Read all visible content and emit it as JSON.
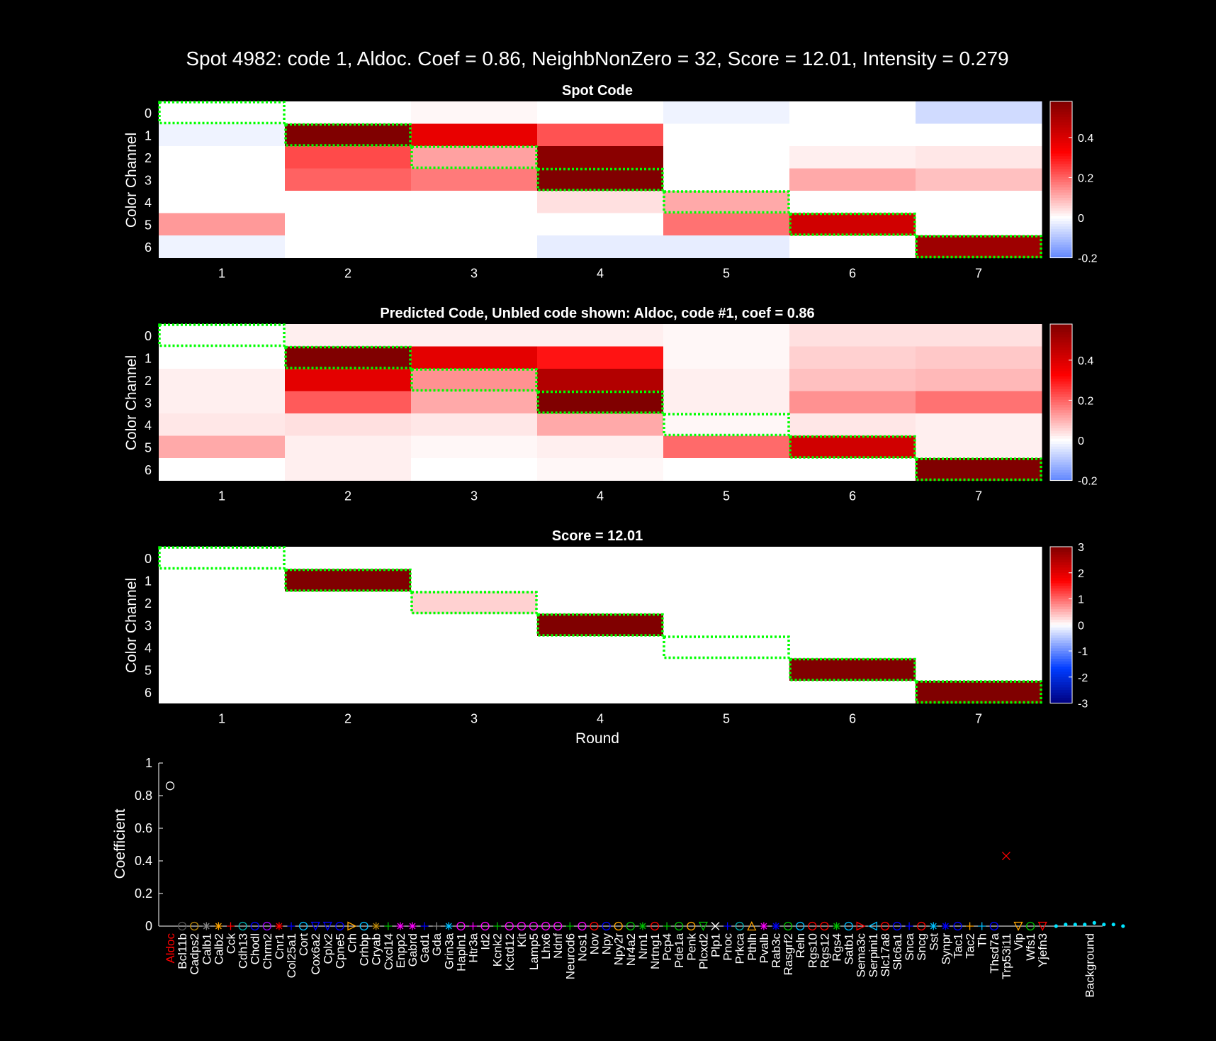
{
  "figure_title": "Spot 4982: code 1, Aldoc. Coef = 0.86, NeighbNonZero = 32, Score = 12.01, Intensity = 0.279",
  "colors": {
    "background": "#000000",
    "highlight": "#00ff00",
    "text": "#ffffff",
    "gene_highlight": "#ff0000",
    "background_marker": "#00e5ff"
  },
  "chart_data": [
    {
      "type": "heatmap",
      "title": "Spot Code",
      "xlabel": "",
      "ylabel": "Color Channel",
      "x": [
        1,
        2,
        3,
        4,
        5,
        6,
        7
      ],
      "y": [
        0,
        1,
        2,
        3,
        4,
        5,
        6
      ],
      "clim": [
        -0.2,
        0.58
      ],
      "colorbar_ticks": [
        "-0.2",
        "0",
        "0.2",
        "0.4"
      ],
      "colorbar_tick_values": [
        -0.2,
        0,
        0.2,
        0.4
      ],
      "highlight_channel_per_round": [
        0,
        1,
        2,
        3,
        4,
        5,
        6
      ],
      "values": [
        [
          0.0,
          0.0,
          0.01,
          0.0,
          -0.02,
          0.0,
          -0.06
        ],
        [
          -0.02,
          0.58,
          0.37,
          0.22,
          0.0,
          0.0,
          0.0
        ],
        [
          0.0,
          0.23,
          0.12,
          0.56,
          0.0,
          0.02,
          0.03
        ],
        [
          0.0,
          0.2,
          0.17,
          0.58,
          0.0,
          0.11,
          0.08
        ],
        [
          0.0,
          0.0,
          0.0,
          0.04,
          0.11,
          0.0,
          0.0
        ],
        [
          0.13,
          0.0,
          0.0,
          0.0,
          0.18,
          0.42,
          0.0
        ],
        [
          -0.02,
          0.0,
          0.0,
          -0.03,
          -0.03,
          0.0,
          0.52
        ]
      ]
    },
    {
      "type": "heatmap",
      "title": "Predicted Code, Unbled code shown: Aldoc, code #1, coef = 0.86",
      "xlabel": "",
      "ylabel": "Color Channel",
      "x": [
        1,
        2,
        3,
        4,
        5,
        6,
        7
      ],
      "y": [
        0,
        1,
        2,
        3,
        4,
        5,
        6
      ],
      "clim": [
        -0.2,
        0.58
      ],
      "colorbar_ticks": [
        "-0.2",
        "0",
        "0.2",
        "0.4"
      ],
      "colorbar_tick_values": [
        -0.2,
        0,
        0.2,
        0.4
      ],
      "highlight_channel_per_round": [
        0,
        1,
        2,
        3,
        4,
        5,
        6
      ],
      "values": [
        [
          0.0,
          0.02,
          0.02,
          0.02,
          0.01,
          0.04,
          0.04
        ],
        [
          0.0,
          0.58,
          0.38,
          0.3,
          0.01,
          0.06,
          0.07
        ],
        [
          0.02,
          0.38,
          0.14,
          0.48,
          0.02,
          0.08,
          0.09
        ],
        [
          0.02,
          0.21,
          0.11,
          0.58,
          0.02,
          0.14,
          0.18
        ],
        [
          0.03,
          0.04,
          0.03,
          0.11,
          0.01,
          0.03,
          0.02
        ],
        [
          0.11,
          0.02,
          0.01,
          0.02,
          0.19,
          0.42,
          0.02
        ],
        [
          0.0,
          0.02,
          0.0,
          0.01,
          0.0,
          0.0,
          0.58
        ]
      ]
    },
    {
      "type": "heatmap",
      "title": "Score = 12.01",
      "xlabel": "Round",
      "ylabel": "Color Channel",
      "x": [
        1,
        2,
        3,
        4,
        5,
        6,
        7
      ],
      "y": [
        0,
        1,
        2,
        3,
        4,
        5,
        6
      ],
      "clim": [
        -3,
        3
      ],
      "colorbar_ticks": [
        "-3",
        "-2",
        "-1",
        "0",
        "1",
        "2",
        "3"
      ],
      "colorbar_tick_values": [
        -3,
        -2,
        -1,
        0,
        1,
        2,
        3
      ],
      "highlight_channel_per_round": [
        0,
        1,
        2,
        3,
        4,
        5,
        6
      ],
      "values": [
        [
          0,
          0,
          0,
          0,
          0,
          0,
          0
        ],
        [
          0,
          3,
          0,
          0,
          0,
          0,
          0
        ],
        [
          0,
          0,
          0.3,
          0,
          0,
          0,
          0
        ],
        [
          0,
          0,
          0,
          3,
          0,
          0,
          0
        ],
        [
          0,
          0,
          0,
          0,
          0,
          0,
          0
        ],
        [
          0,
          0,
          0,
          0,
          0,
          3,
          0
        ],
        [
          0,
          0,
          0,
          0,
          0,
          0,
          3
        ]
      ]
    },
    {
      "type": "scatter",
      "title": "",
      "xlabel": "",
      "ylabel": "Coefficient",
      "ylim": [
        0,
        1
      ],
      "y_ticks": [
        "0",
        "0.2",
        "0.4",
        "0.6",
        "0.8",
        "1"
      ],
      "y_tick_values": [
        0,
        0.2,
        0.4,
        0.6,
        0.8,
        1
      ],
      "highlighted_gene": "Aldoc",
      "genes": [
        "Aldoc",
        "Bcl11b",
        "Cadps2",
        "Calb1",
        "Calb2",
        "Cck",
        "Cdh13",
        "Chodl",
        "Chrm2",
        "Cnr1",
        "Col25a1",
        "Cort",
        "Cox6a2",
        "Cplx2",
        "Cpne5",
        "Crh",
        "Crhbp",
        "Cryab",
        "Cxcl14",
        "Enpp2",
        "Gabrd",
        "Gad1",
        "Gda",
        "Grin3a",
        "Hapln1",
        "Htr3a",
        "Id2",
        "Kcnk2",
        "Kctd12",
        "Kit",
        "Lamp5",
        "Lhx6",
        "Ndnf",
        "Neurod6",
        "Nos1",
        "Nov",
        "Npy",
        "Npy2r",
        "Nr4a2",
        "Nrn1",
        "Nrtng1",
        "Pcp4",
        "Pde1a",
        "Penk",
        "Plcxd2",
        "Plp1",
        "Pnoc",
        "Prkca",
        "Pthlh",
        "Pvalb",
        "Rab3c",
        "Rasgrf2",
        "Reln",
        "Rgs10",
        "Rgs12",
        "Rgs4",
        "Satb1",
        "Sema3c",
        "Serpini1",
        "Slc17a8",
        "Slc6a1",
        "Snca",
        "Sncg",
        "Sst",
        "Synpr",
        "Tac1",
        "Tac2",
        "Th",
        "Thsd7a",
        "Trp53i11",
        "Vip",
        "Wfs1",
        "Yjefn3"
      ],
      "gene_coefficients": [
        0.86,
        0,
        0,
        0,
        0,
        0,
        0,
        0,
        0,
        0,
        0,
        0,
        0,
        0,
        0,
        0,
        0,
        0,
        0,
        0,
        0,
        0,
        0,
        0,
        0,
        0,
        0,
        0,
        0,
        0,
        0,
        0,
        0,
        0,
        0,
        0,
        0,
        0,
        0,
        0,
        0,
        0,
        0,
        0,
        0,
        0,
        0,
        0,
        0,
        0,
        0,
        0,
        0,
        0,
        0,
        0,
        0,
        0,
        0,
        0,
        0,
        0,
        0,
        0,
        0,
        0,
        0,
        0,
        0,
        0.43,
        0,
        0,
        0
      ],
      "gene_markers": [
        "o",
        "o",
        "o",
        "*",
        "*",
        "+",
        "o",
        "o",
        "o",
        "*",
        "+",
        "o",
        "v",
        "v",
        "o",
        ">",
        "o",
        "*",
        "+",
        "*",
        "*",
        "+",
        "+",
        "*",
        "o",
        "+",
        "o",
        "+",
        "o",
        "o",
        "o",
        "o",
        "o",
        "+",
        "o",
        "o",
        "o",
        "o",
        "o",
        "*",
        "o",
        "+",
        "o",
        "o",
        "v",
        "x",
        "+",
        "o",
        "^",
        "*",
        "*",
        "o",
        "o",
        "o",
        "o",
        "*",
        "o",
        ">",
        "<",
        "o",
        "o",
        "+",
        "o",
        "*",
        "*",
        "o",
        "+",
        "+",
        "o",
        "x",
        "v",
        "o",
        "v"
      ],
      "gene_colors": [
        "#ffffff",
        "#555555",
        "#b8860b",
        "#888888",
        "#ffa500",
        "#ff0000",
        "#00b0b0",
        "#0000ff",
        "#a000ff",
        "#ff0000",
        "#0000ff",
        "#00bfff",
        "#0000ff",
        "#0000ff",
        "#0000ff",
        "#ffa500",
        "#00bfff",
        "#b8860b",
        "#00c000",
        "#ff00ff",
        "#ff00ff",
        "#0000ff",
        "#888888",
        "#00bfff",
        "#ff00ff",
        "#ff00ff",
        "#ff00ff",
        "#00c000",
        "#ff00ff",
        "#ff00ff",
        "#ff00ff",
        "#ff00ff",
        "#ff00ff",
        "#00c000",
        "#ff00ff",
        "#ff0000",
        "#0000ff",
        "#ffa500",
        "#00c000",
        "#00c000",
        "#ff0000",
        "#00c000",
        "#00c000",
        "#ffa500",
        "#00c000",
        "#ffffff",
        "#0000ff",
        "#00b0b0",
        "#ffa500",
        "#ff00ff",
        "#0000ff",
        "#00c000",
        "#00bfff",
        "#ff0000",
        "#ff0000",
        "#00c000",
        "#00bfff",
        "#ff0000",
        "#00bfff",
        "#ff0000",
        "#0000ff",
        "#0000ff",
        "#ff0000",
        "#00bfff",
        "#0000ff",
        "#0000ff",
        "#ffa500",
        "#00bfff",
        "#0000ff",
        "#ff0000",
        "#ffa500",
        "#00c000",
        "#ff0000"
      ],
      "background_label": "Background",
      "background_coefficients": [
        0.0,
        0.01,
        0.01,
        0.01,
        0.02,
        0.01,
        0.01,
        0.0
      ]
    }
  ]
}
